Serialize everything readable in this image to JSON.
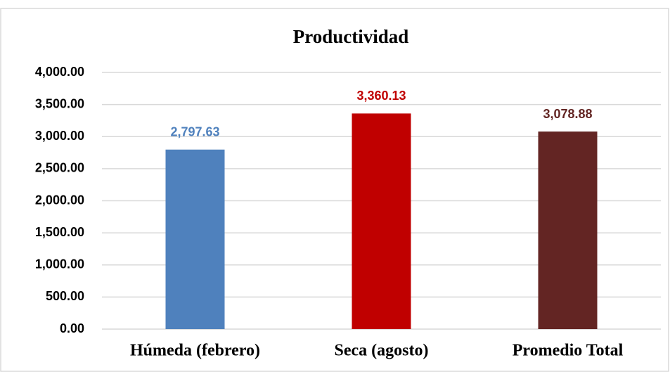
{
  "chart_data": {
    "type": "bar",
    "title": "Productividad",
    "categories": [
      "Húmeda (febrero)",
      "Seca (agosto)",
      "Promedio Total"
    ],
    "values": [
      2797.63,
      3360.13,
      3078.88
    ],
    "value_labels": [
      "2,797.63",
      "3,360.13",
      "3,078.88"
    ],
    "colors": [
      "#4f81bd",
      "#c00000",
      "#632523"
    ],
    "ylim": [
      0,
      4000
    ],
    "yticks": [
      {
        "value": 0,
        "label": "0.00"
      },
      {
        "value": 500,
        "label": "500.00"
      },
      {
        "value": 1000,
        "label": "1,000.00"
      },
      {
        "value": 1500,
        "label": "1,500.00"
      },
      {
        "value": 2000,
        "label": "2,000.00"
      },
      {
        "value": 2500,
        "label": "2,500.00"
      },
      {
        "value": 3000,
        "label": "3,000.00"
      },
      {
        "value": 3500,
        "label": "3,500.00"
      },
      {
        "value": 4000,
        "label": "4,000.00"
      }
    ],
    "grid": true
  }
}
